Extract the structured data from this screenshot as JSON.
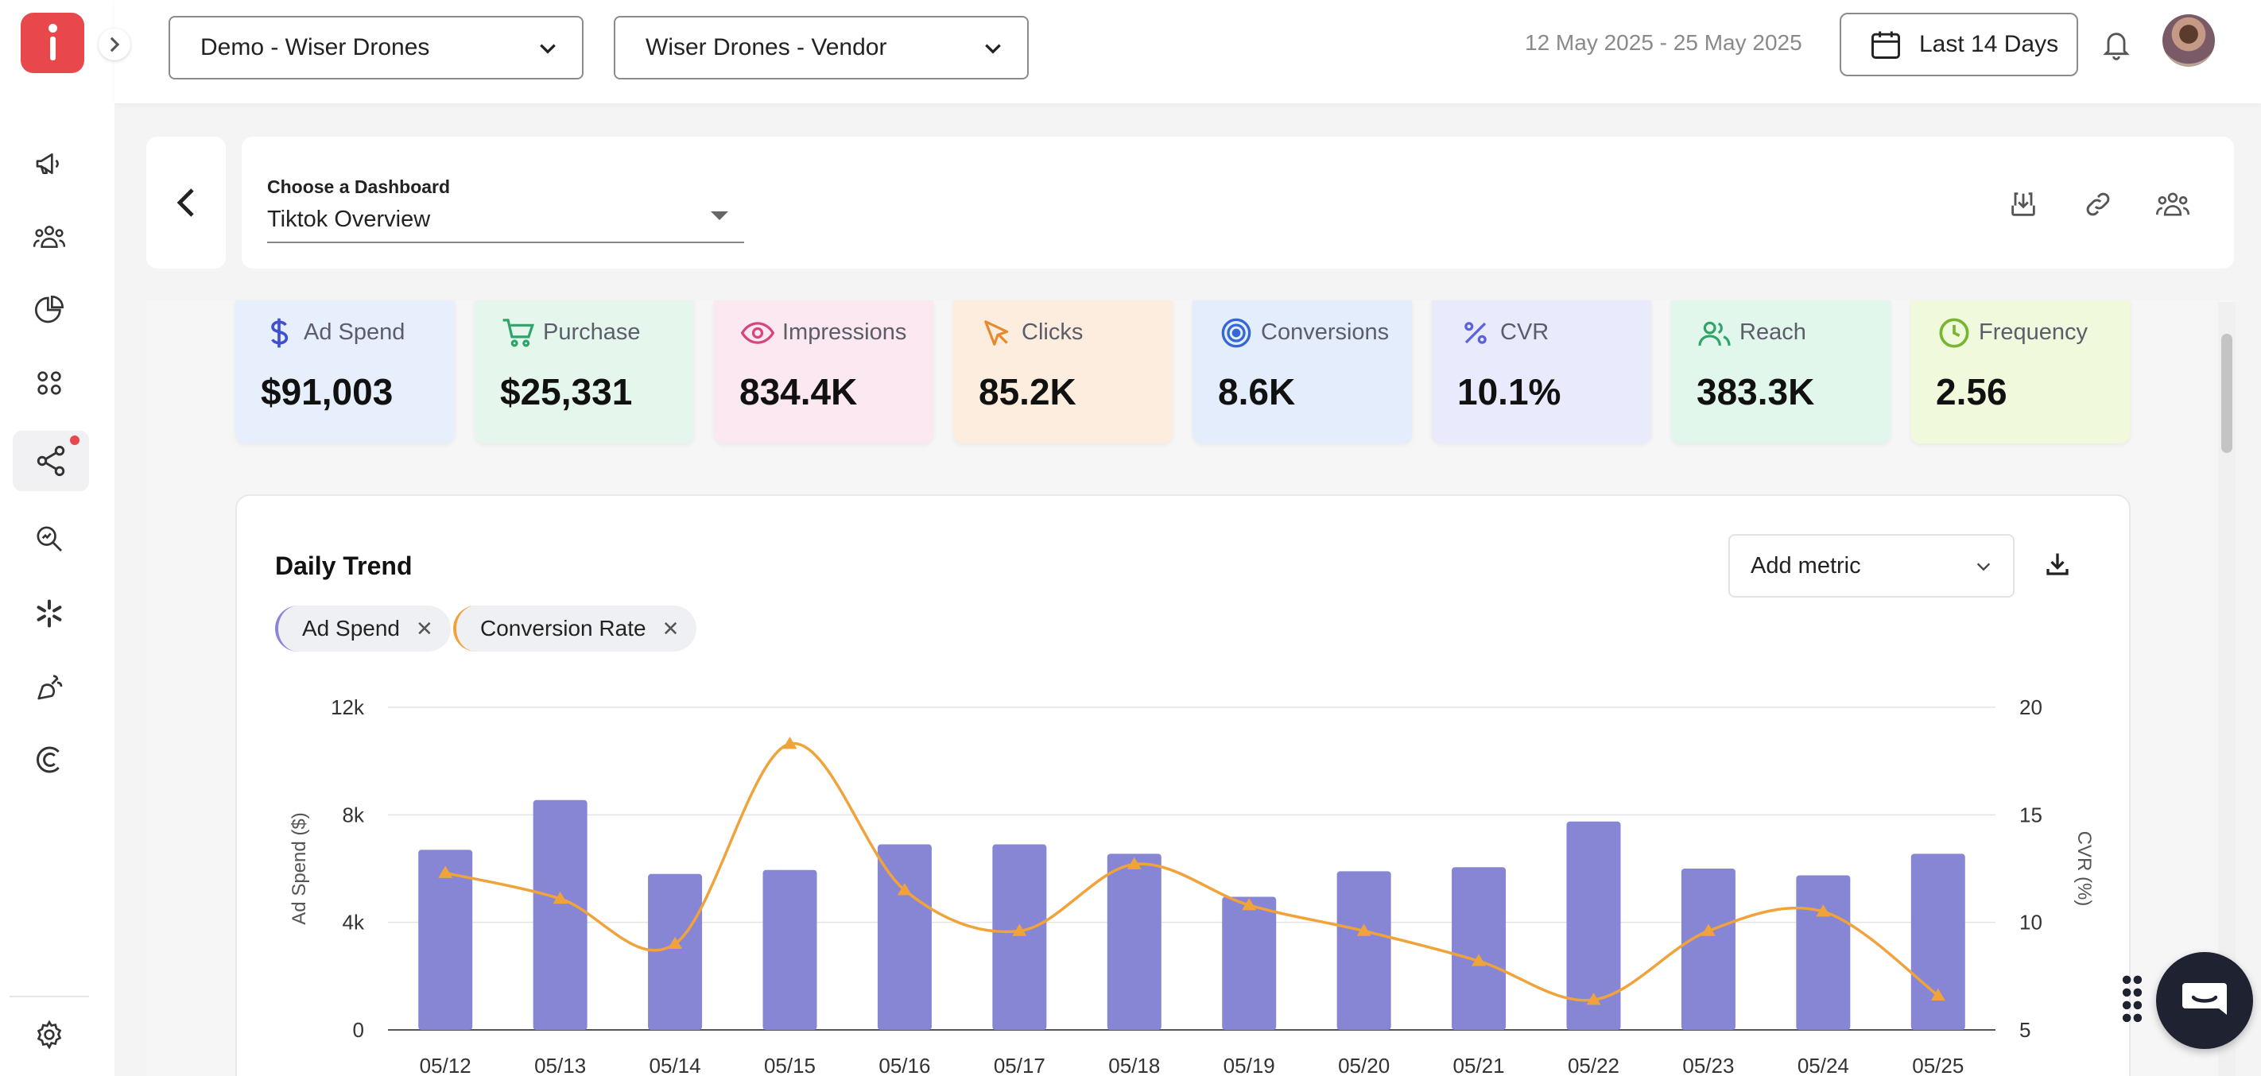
{
  "header": {
    "account_select": "Demo - Wiser Drones",
    "vendor_select": "Wiser Drones - Vendor",
    "date_range": "12 May 2025 - 25 May 2025",
    "range_button": "Last 14 Days"
  },
  "dashboard": {
    "label": "Choose a Dashboard",
    "value": "Tiktok Overview"
  },
  "kpis": [
    {
      "title": "Ad Spend",
      "value": "$91,003",
      "icon": "dollar-icon",
      "bg": "#e7effd",
      "accent": "#3f4fd1"
    },
    {
      "title": "Purchase",
      "value": "$25,331",
      "icon": "cart-icon",
      "bg": "#e5f7ec",
      "accent": "#2ea36a"
    },
    {
      "title": "Impressions",
      "value": "834.4K",
      "icon": "eye-icon",
      "bg": "#fbe8f1",
      "accent": "#d6457e"
    },
    {
      "title": "Clicks",
      "value": "85.2K",
      "icon": "cursor-icon",
      "bg": "#fdeddf",
      "accent": "#e8892e"
    },
    {
      "title": "Conversions",
      "value": "8.6K",
      "icon": "target-icon",
      "bg": "#e4edfc",
      "accent": "#3567d6"
    },
    {
      "title": "CVR",
      "value": "10.1%",
      "icon": "percent-icon",
      "bg": "#e9eafc",
      "accent": "#5b63d9"
    },
    {
      "title": "Reach",
      "value": "383.3K",
      "icon": "users-icon",
      "bg": "#e2f7ec",
      "accent": "#2ea36a"
    },
    {
      "title": "Frequency",
      "value": "2.56",
      "icon": "clock-icon",
      "bg": "#f0f9dc",
      "accent": "#78b531"
    }
  ],
  "chart": {
    "title": "Daily Trend",
    "add_metric": "Add metric",
    "chips": [
      {
        "label": "Ad Spend",
        "accent": "#8a86d6"
      },
      {
        "label": "Conversion Rate",
        "accent": "#f0a33a"
      }
    ]
  },
  "chart_data": {
    "type": "bar",
    "categories": [
      "05/12",
      "05/13",
      "05/14",
      "05/15",
      "05/16",
      "05/17",
      "05/18",
      "05/19",
      "05/20",
      "05/21",
      "05/22",
      "05/23",
      "05/24",
      "05/25"
    ],
    "series": [
      {
        "name": "Ad Spend",
        "type": "bar",
        "axis": "left",
        "color": "#8786d4",
        "values": [
          6700,
          8550,
          5800,
          5950,
          6900,
          6900,
          6550,
          4950,
          5900,
          6050,
          7750,
          6000,
          5750,
          6550
        ]
      },
      {
        "name": "Conversion Rate",
        "type": "line",
        "axis": "right",
        "color": "#f0a33a",
        "values": [
          12.3,
          11.1,
          9.0,
          18.3,
          11.5,
          9.6,
          12.7,
          10.8,
          9.6,
          8.2,
          6.4,
          9.6,
          10.5,
          6.6
        ]
      }
    ],
    "ylabel_left": "Ad Spend ($)",
    "ylabel_right": "CVR (%)",
    "yticks_left": [
      "0",
      "4k",
      "8k",
      "12k"
    ],
    "yticks_right": [
      "5",
      "10",
      "15",
      "20"
    ],
    "ylim_left": [
      0,
      12000
    ],
    "ylim_right": [
      5,
      20
    ],
    "grid": true
  }
}
